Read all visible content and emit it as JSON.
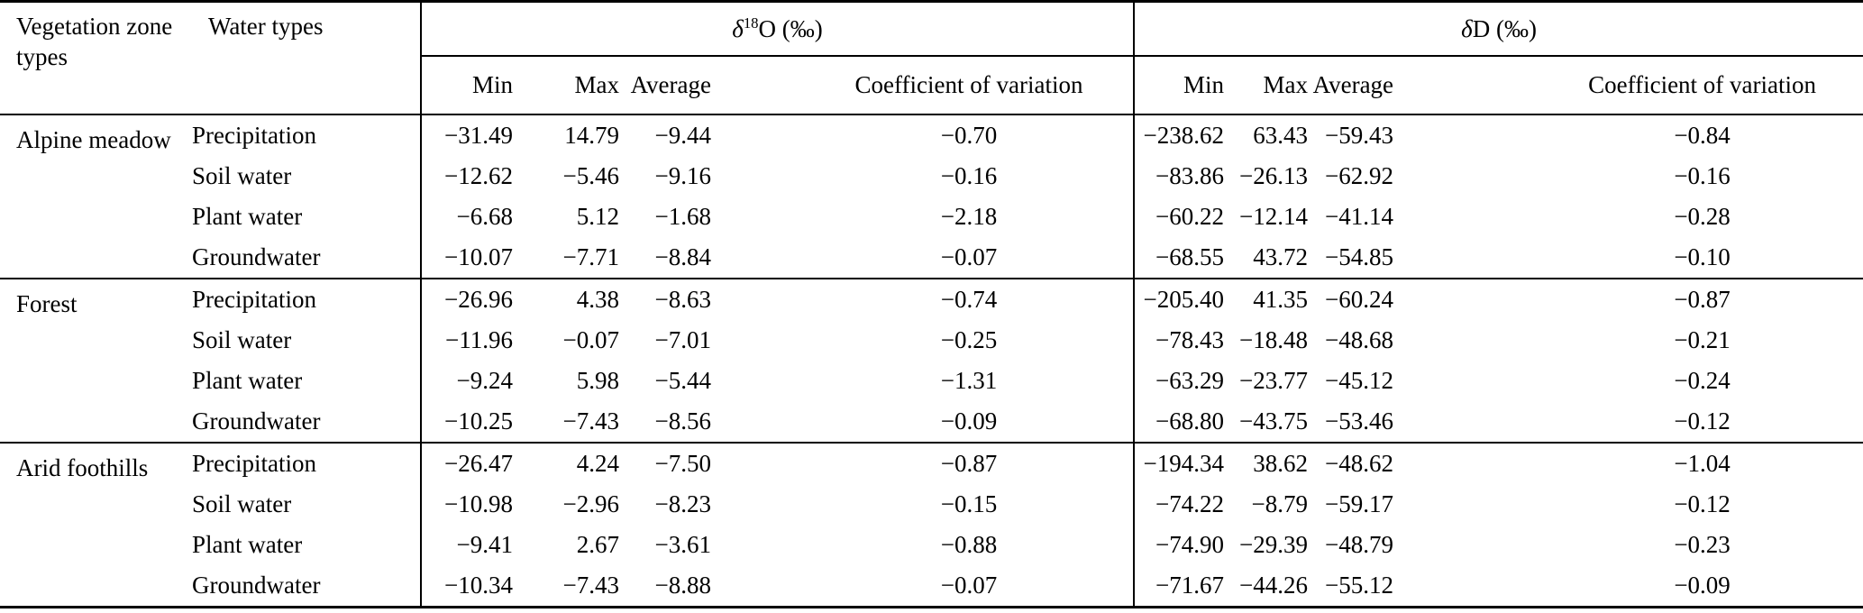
{
  "table": {
    "headers": {
      "zone": "Vegetation zone types",
      "water": "Water types",
      "group_o18": {
        "delta": "δ",
        "sup": "18",
        "rest": "O (‰)"
      },
      "group_d": {
        "delta": "δ",
        "sup": "",
        "rest": "D (‰)"
      },
      "sub": [
        "Min",
        "Max",
        "Average",
        "Coefficient of variation",
        "Min",
        "Max",
        "Average",
        "Coefficient of variation"
      ]
    },
    "sections": [
      {
        "zone": "Alpine meadow",
        "rows": [
          {
            "water": "Precipitation",
            "values": [
              "−31.49",
              "14.79",
              "−9.44",
              "−0.70",
              "−238.62",
              "63.43",
              "−59.43",
              "−0.84"
            ]
          },
          {
            "water": "Soil water",
            "values": [
              "−12.62",
              "−5.46",
              "−9.16",
              "−0.16",
              "−83.86",
              "−26.13",
              "−62.92",
              "−0.16"
            ]
          },
          {
            "water": "Plant water",
            "values": [
              "−6.68",
              "5.12",
              "−1.68",
              "−2.18",
              "−60.22",
              "−12.14",
              "−41.14",
              "−0.28"
            ]
          },
          {
            "water": "Groundwater",
            "values": [
              "−10.07",
              "−7.71",
              "−8.84",
              "−0.07",
              "−68.55",
              "43.72",
              "−54.85",
              "−0.10"
            ]
          }
        ]
      },
      {
        "zone": "Forest",
        "rows": [
          {
            "water": "Precipitation",
            "values": [
              "−26.96",
              "4.38",
              "−8.63",
              "−0.74",
              "−205.40",
              "41.35",
              "−60.24",
              "−0.87"
            ]
          },
          {
            "water": "Soil water",
            "values": [
              "−11.96",
              "−0.07",
              "−7.01",
              "−0.25",
              "−78.43",
              "−18.48",
              "−48.68",
              "−0.21"
            ]
          },
          {
            "water": "Plant water",
            "values": [
              "−9.24",
              "5.98",
              "−5.44",
              "−1.31",
              "−63.29",
              "−23.77",
              "−45.12",
              "−0.24"
            ]
          },
          {
            "water": "Groundwater",
            "values": [
              "−10.25",
              "−7.43",
              "−8.56",
              "−0.09",
              "−68.80",
              "−43.75",
              "−53.46",
              "−0.12"
            ]
          }
        ]
      },
      {
        "zone": "Arid foothills",
        "rows": [
          {
            "water": "Precipitation",
            "values": [
              "−26.47",
              "4.24",
              "−7.50",
              "−0.87",
              "−194.34",
              "38.62",
              "−48.62",
              "−1.04"
            ]
          },
          {
            "water": "Soil water",
            "values": [
              "−10.98",
              "−2.96",
              "−8.23",
              "−0.15",
              "−74.22",
              "−8.79",
              "−59.17",
              "−0.12"
            ]
          },
          {
            "water": "Plant water",
            "values": [
              "−9.41",
              "2.67",
              "−3.61",
              "−0.88",
              "−74.90",
              "−29.39",
              "−48.79",
              "−0.23"
            ]
          },
          {
            "water": "Groundwater",
            "values": [
              "−10.34",
              "−7.43",
              "−8.88",
              "−0.07",
              "−71.67",
              "−44.26",
              "−55.12",
              "−0.09"
            ]
          }
        ]
      }
    ]
  },
  "colors": {
    "text": "#000000",
    "background": "#ffffff",
    "rule": "#000000"
  }
}
